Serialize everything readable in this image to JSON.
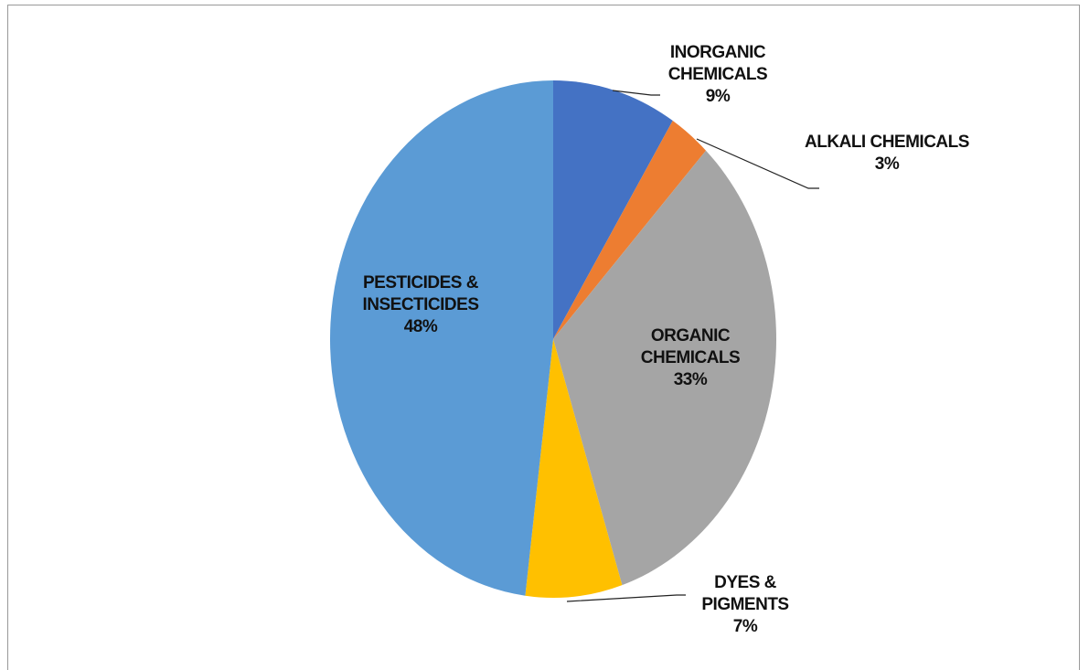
{
  "chart_data": {
    "type": "pie",
    "categories": [
      "INORGANIC CHEMICALS",
      "ALKALI CHEMICALS",
      "ORGANIC CHEMICALS",
      "DYES & PIGMENTS",
      "PESTICIDES & INSECTICIDES"
    ],
    "values": [
      9,
      3,
      33,
      7,
      48
    ],
    "value_labels": [
      "9%",
      "3%",
      "33%",
      "7%",
      "48%"
    ],
    "colors": [
      "#4472c4",
      "#ed7d31",
      "#a5a5a5",
      "#ffc000",
      "#5b9bd5"
    ]
  }
}
